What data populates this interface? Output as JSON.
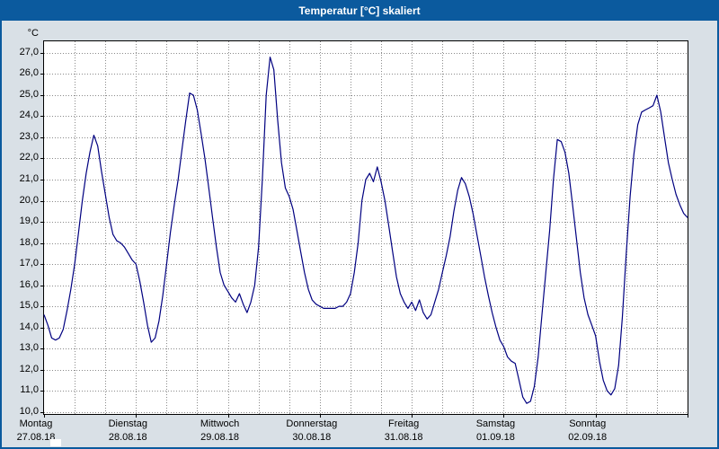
{
  "window": {
    "title": "Temperatur [°C] skaliert"
  },
  "colors": {
    "titlebar_bg": "#0b5a9e",
    "titlebar_text": "#ffffff",
    "frame_bg": "#d9e0e6",
    "plot_bg": "#ffffff",
    "grid": "#8a8a8a",
    "axis": "#000000",
    "line": "#000080"
  },
  "chart_data": {
    "type": "line",
    "title": "Temperatur [°C] skaliert",
    "ylabel": "°C",
    "ylim": [
      10,
      27
    ],
    "ytick_step": 1.0,
    "ytick_labels": [
      "27,0",
      "26,0",
      "25,0",
      "24,0",
      "23,0",
      "22,0",
      "21,0",
      "20,0",
      "19,0",
      "18,0",
      "17,0",
      "16,0",
      "15,0",
      "14,0",
      "13,0",
      "12,0",
      "11,0",
      "10,0"
    ],
    "x_unit": "hours from Monday 00:00",
    "xlim": [
      0,
      168
    ],
    "grid": "dotted; vertical every 8h, horizontal every 1°C",
    "legend_position": "none",
    "days": [
      {
        "name": "Montag",
        "date": "27.08.18"
      },
      {
        "name": "Dienstag",
        "date": "28.08.18"
      },
      {
        "name": "Mittwoch",
        "date": "29.08.18"
      },
      {
        "name": "Donnerstag",
        "date": "30.08.18"
      },
      {
        "name": "Freitag",
        "date": "31.08.18"
      },
      {
        "name": "Samstag",
        "date": "01.09.18"
      },
      {
        "name": "Sonntag",
        "date": "02.09.18"
      }
    ],
    "series": [
      {
        "name": "Temperatur",
        "color": "#000080",
        "points": [
          [
            0,
            14.6
          ],
          [
            1,
            14.1
          ],
          [
            2,
            13.5
          ],
          [
            3,
            13.4
          ],
          [
            4,
            13.5
          ],
          [
            5,
            13.9
          ],
          [
            6,
            14.8
          ],
          [
            7,
            15.8
          ],
          [
            8,
            17.0
          ],
          [
            9,
            18.5
          ],
          [
            10,
            20.0
          ],
          [
            11,
            21.3
          ],
          [
            12,
            22.3
          ],
          [
            13,
            23.1
          ],
          [
            14,
            22.6
          ],
          [
            15,
            21.4
          ],
          [
            16,
            20.3
          ],
          [
            17,
            19.2
          ],
          [
            18,
            18.4
          ],
          [
            19,
            18.1
          ],
          [
            20,
            18.0
          ],
          [
            21,
            17.8
          ],
          [
            22,
            17.5
          ],
          [
            23,
            17.2
          ],
          [
            24,
            17.0
          ],
          [
            25,
            16.2
          ],
          [
            26,
            15.2
          ],
          [
            27,
            14.1
          ],
          [
            28,
            13.3
          ],
          [
            29,
            13.5
          ],
          [
            30,
            14.3
          ],
          [
            31,
            15.5
          ],
          [
            32,
            17.0
          ],
          [
            33,
            18.5
          ],
          [
            34,
            19.8
          ],
          [
            35,
            21.0
          ],
          [
            36,
            22.4
          ],
          [
            37,
            23.8
          ],
          [
            38,
            25.1
          ],
          [
            39,
            25.0
          ],
          [
            40,
            24.3
          ],
          [
            41,
            23.2
          ],
          [
            42,
            22.0
          ],
          [
            43,
            20.6
          ],
          [
            44,
            19.2
          ],
          [
            45,
            17.8
          ],
          [
            46,
            16.6
          ],
          [
            47,
            16.0
          ],
          [
            48,
            15.7
          ],
          [
            49,
            15.4
          ],
          [
            50,
            15.2
          ],
          [
            51,
            15.6
          ],
          [
            52,
            15.1
          ],
          [
            53,
            14.7
          ],
          [
            54,
            15.2
          ],
          [
            55,
            16.0
          ],
          [
            56,
            17.8
          ],
          [
            57,
            21.0
          ],
          [
            58,
            25.0
          ],
          [
            59,
            26.8
          ],
          [
            60,
            26.2
          ],
          [
            61,
            23.8
          ],
          [
            62,
            21.8
          ],
          [
            63,
            20.6
          ],
          [
            64,
            20.2
          ],
          [
            65,
            19.6
          ],
          [
            66,
            18.6
          ],
          [
            67,
            17.6
          ],
          [
            68,
            16.6
          ],
          [
            69,
            15.8
          ],
          [
            70,
            15.3
          ],
          [
            71,
            15.1
          ],
          [
            72,
            15.0
          ],
          [
            73,
            14.9
          ],
          [
            74,
            14.9
          ],
          [
            75,
            14.9
          ],
          [
            76,
            14.9
          ],
          [
            77,
            15.0
          ],
          [
            78,
            15.0
          ],
          [
            79,
            15.2
          ],
          [
            80,
            15.6
          ],
          [
            81,
            16.6
          ],
          [
            82,
            18.0
          ],
          [
            83,
            20.0
          ],
          [
            84,
            21.0
          ],
          [
            85,
            21.3
          ],
          [
            86,
            20.9
          ],
          [
            87,
            21.6
          ],
          [
            88,
            20.9
          ],
          [
            89,
            20.0
          ],
          [
            90,
            18.8
          ],
          [
            91,
            17.6
          ],
          [
            92,
            16.4
          ],
          [
            93,
            15.6
          ],
          [
            94,
            15.2
          ],
          [
            95,
            14.9
          ],
          [
            96,
            15.2
          ],
          [
            97,
            14.8
          ],
          [
            98,
            15.3
          ],
          [
            99,
            14.7
          ],
          [
            100,
            14.4
          ],
          [
            101,
            14.6
          ],
          [
            102,
            15.2
          ],
          [
            103,
            15.8
          ],
          [
            104,
            16.6
          ],
          [
            105,
            17.4
          ],
          [
            106,
            18.3
          ],
          [
            107,
            19.5
          ],
          [
            108,
            20.5
          ],
          [
            109,
            21.1
          ],
          [
            110,
            20.8
          ],
          [
            111,
            20.2
          ],
          [
            112,
            19.4
          ],
          [
            113,
            18.4
          ],
          [
            114,
            17.4
          ],
          [
            115,
            16.4
          ],
          [
            116,
            15.5
          ],
          [
            117,
            14.7
          ],
          [
            118,
            14.0
          ],
          [
            119,
            13.4
          ],
          [
            120,
            13.1
          ],
          [
            121,
            12.6
          ],
          [
            122,
            12.4
          ],
          [
            123,
            12.3
          ],
          [
            124,
            11.5
          ],
          [
            125,
            10.7
          ],
          [
            126,
            10.4
          ],
          [
            127,
            10.5
          ],
          [
            128,
            11.2
          ],
          [
            129,
            12.6
          ],
          [
            130,
            14.6
          ],
          [
            131,
            16.6
          ],
          [
            132,
            18.6
          ],
          [
            133,
            21.0
          ],
          [
            134,
            22.9
          ],
          [
            135,
            22.8
          ],
          [
            136,
            22.3
          ],
          [
            137,
            21.3
          ],
          [
            138,
            19.8
          ],
          [
            139,
            18.2
          ],
          [
            140,
            16.6
          ],
          [
            141,
            15.4
          ],
          [
            142,
            14.6
          ],
          [
            143,
            14.1
          ],
          [
            144,
            13.6
          ],
          [
            145,
            12.4
          ],
          [
            146,
            11.5
          ],
          [
            147,
            11.0
          ],
          [
            148,
            10.8
          ],
          [
            149,
            11.1
          ],
          [
            150,
            12.2
          ],
          [
            151,
            14.5
          ],
          [
            152,
            17.5
          ],
          [
            153,
            20.2
          ],
          [
            154,
            22.2
          ],
          [
            155,
            23.6
          ],
          [
            156,
            24.2
          ],
          [
            157,
            24.3
          ],
          [
            158,
            24.4
          ],
          [
            159,
            24.5
          ],
          [
            160,
            25.0
          ],
          [
            161,
            24.2
          ],
          [
            162,
            23.0
          ],
          [
            163,
            21.8
          ],
          [
            164,
            21.0
          ],
          [
            165,
            20.3
          ],
          [
            166,
            19.8
          ],
          [
            167,
            19.4
          ],
          [
            168,
            19.2
          ]
        ]
      }
    ]
  }
}
